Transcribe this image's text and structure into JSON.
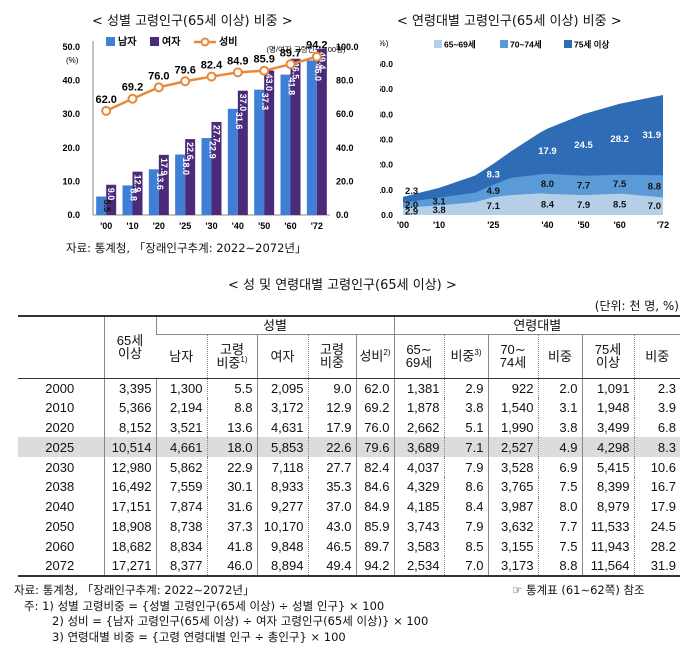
{
  "chart1_title": "< 성별 고령인구(65세 이상) 비중 >",
  "chart2_title": "< 연령대별 고령인구(65세 이상) 비중 >",
  "chart1_source": "자료: 통계청, 「장래인구추계: 2022∼2072년」",
  "table_title": "< 성 및 연령대별 고령인구(65세 이상) >",
  "unit": "(단위: 천 명, %)",
  "colors": {
    "male": "#3f7fd6",
    "female": "#4b2a7a",
    "ratio": "#e8893a",
    "c1": "#b6cfe9",
    "c2": "#5a9ad6",
    "c3": "#2e6db5"
  },
  "chart_data": [
    {
      "type": "bar",
      "title": "< 성별 고령인구(65세 이상) 비중 >",
      "categories": [
        "'00",
        "'10",
        "'20",
        "'25",
        "'30",
        "'40",
        "'50",
        "'60",
        "'72"
      ],
      "left_unit": "(%)",
      "right_unit": "(명/여자 고령인구 100명)",
      "ylim": [
        0,
        50
      ],
      "yticks": [
        "0.0",
        "10.0",
        "20.0",
        "30.0",
        "40.0",
        "50.0"
      ],
      "y2lim": [
        0,
        100
      ],
      "y2ticks": [
        "0.0",
        "20.0",
        "40.0",
        "60.0",
        "80.0",
        "100.0"
      ],
      "legend": [
        "남자",
        "여자",
        "성비"
      ],
      "series": [
        {
          "name": "남자",
          "values": [
            5.5,
            8.8,
            13.6,
            18.0,
            22.9,
            31.6,
            37.3,
            41.8,
            46.0
          ]
        },
        {
          "name": "여자",
          "values": [
            9.0,
            12.9,
            17.9,
            22.6,
            27.7,
            37.0,
            43.0,
            46.5,
            49.4
          ]
        },
        {
          "name": "성비",
          "axis": "right",
          "values": [
            62.0,
            69.2,
            76.0,
            79.6,
            82.4,
            84.9,
            85.9,
            89.7,
            94.2
          ]
        }
      ]
    },
    {
      "type": "area",
      "title": "< 연령대별 고령인구(65세 이상) 비중 >",
      "y_unit": "(%)",
      "ylim": [
        0,
        60
      ],
      "yticks": [
        "0.0",
        "10.0",
        "20.0",
        "30.0",
        "40.0",
        "50.0",
        "60.0"
      ],
      "xlim": [
        2000,
        2072
      ],
      "xticks": [
        {
          "x": 2000,
          "label": "'00"
        },
        {
          "x": 2010,
          "label": "'10"
        },
        {
          "x": 2025,
          "label": "'25"
        },
        {
          "x": 2040,
          "label": "'40"
        },
        {
          "x": 2050,
          "label": "'50"
        },
        {
          "x": 2060,
          "label": "'60"
        },
        {
          "x": 2072,
          "label": "'72"
        }
      ],
      "x": [
        2000,
        2010,
        2020,
        2025,
        2030,
        2038,
        2040,
        2050,
        2060,
        2072
      ],
      "legend": [
        "65~69세",
        "70~74세",
        "75세 이상"
      ],
      "series": [
        {
          "name": "65~69세",
          "values": [
            2.9,
            3.8,
            5.1,
            7.1,
            7.9,
            8.6,
            8.4,
            7.9,
            8.5,
            7.0
          ]
        },
        {
          "name": "70~74세",
          "values": [
            2.0,
            3.1,
            3.8,
            4.9,
            6.9,
            7.5,
            8.0,
            7.7,
            7.5,
            8.8
          ]
        },
        {
          "name": "75세 이상",
          "values": [
            2.3,
            3.9,
            6.8,
            8.3,
            10.6,
            16.7,
            17.9,
            24.5,
            28.2,
            31.9
          ]
        }
      ],
      "labels": [
        {
          "x": 2000,
          "series": 0,
          "text": "2.9"
        },
        {
          "x": 2000,
          "series": 1,
          "text": "2.0"
        },
        {
          "x": 2000,
          "series": 2,
          "text": "2.3"
        },
        {
          "x": 2010,
          "series": 0,
          "text": "3.8"
        },
        {
          "x": 2010,
          "series": 1,
          "text": "3.1"
        },
        {
          "x": 2010,
          "series": 2,
          "text": "3.9"
        },
        {
          "x": 2025,
          "series": 0,
          "text": "7.1"
        },
        {
          "x": 2025,
          "series": 1,
          "text": "4.9"
        },
        {
          "x": 2025,
          "series": 2,
          "text": "8.3"
        },
        {
          "x": 2040,
          "series": 0,
          "text": "8.4"
        },
        {
          "x": 2040,
          "series": 1,
          "text": "8.0"
        },
        {
          "x": 2040,
          "series": 2,
          "text": "17.9"
        },
        {
          "x": 2050,
          "series": 0,
          "text": "7.9"
        },
        {
          "x": 2050,
          "series": 1,
          "text": "7.7"
        },
        {
          "x": 2050,
          "series": 2,
          "text": "24.5"
        },
        {
          "x": 2060,
          "series": 0,
          "text": "8.5"
        },
        {
          "x": 2060,
          "series": 1,
          "text": "7.5"
        },
        {
          "x": 2060,
          "series": 2,
          "text": "28.2"
        },
        {
          "x": 2072,
          "series": 0,
          "text": "7.0"
        },
        {
          "x": 2072,
          "series": 1,
          "text": "8.8"
        },
        {
          "x": 2072,
          "series": 2,
          "text": "31.9"
        }
      ]
    }
  ],
  "table": {
    "header": {
      "total": [
        "65세",
        "이상"
      ],
      "group_sex": "성별",
      "group_age": "연령대별",
      "male": "남자",
      "male_share": [
        "고령",
        "비중"
      ],
      "male_share_sup": "1)",
      "female": "여자",
      "female_share": [
        "고령",
        "비중"
      ],
      "ratio": "성비",
      "ratio_sup": "2)",
      "a65": [
        "65∼",
        "69세"
      ],
      "share": "비중",
      "share_sup": "3)",
      "a70": [
        "70∼",
        "74세"
      ],
      "share2": "비중",
      "a75": [
        "75세",
        "이상"
      ],
      "share3": "비중"
    },
    "highlight_index": 3,
    "rows": [
      [
        "2000",
        "3,395",
        "1,300",
        "5.5",
        "2,095",
        "9.0",
        "62.0",
        "1,381",
        "2.9",
        "922",
        "2.0",
        "1,091",
        "2.3"
      ],
      [
        "2010",
        "5,366",
        "2,194",
        "8.8",
        "3,172",
        "12.9",
        "69.2",
        "1,878",
        "3.8",
        "1,540",
        "3.1",
        "1,948",
        "3.9"
      ],
      [
        "2020",
        "8,152",
        "3,521",
        "13.6",
        "4,631",
        "17.9",
        "76.0",
        "2,662",
        "5.1",
        "1,990",
        "3.8",
        "3,499",
        "6.8"
      ],
      [
        "2025",
        "10,514",
        "4,661",
        "18.0",
        "5,853",
        "22.6",
        "79.6",
        "3,689",
        "7.1",
        "2,527",
        "4.9",
        "4,298",
        "8.3"
      ],
      [
        "2030",
        "12,980",
        "5,862",
        "22.9",
        "7,118",
        "27.7",
        "82.4",
        "4,037",
        "7.9",
        "3,528",
        "6.9",
        "5,415",
        "10.6"
      ],
      [
        "2038",
        "16,492",
        "7,559",
        "30.1",
        "8,933",
        "35.3",
        "84.6",
        "4,329",
        "8.6",
        "3,765",
        "7.5",
        "8,399",
        "16.7"
      ],
      [
        "2040",
        "17,151",
        "7,874",
        "31.6",
        "9,277",
        "37.0",
        "84.9",
        "4,185",
        "8.4",
        "3,987",
        "8.0",
        "8,979",
        "17.9"
      ],
      [
        "2050",
        "18,908",
        "8,738",
        "37.3",
        "10,170",
        "43.0",
        "85.9",
        "3,743",
        "7.9",
        "3,632",
        "7.7",
        "11,533",
        "24.5"
      ],
      [
        "2060",
        "18,682",
        "8,834",
        "41.8",
        "9,848",
        "46.5",
        "89.7",
        "3,583",
        "8.5",
        "3,155",
        "7.5",
        "11,943",
        "28.2"
      ],
      [
        "2072",
        "17,271",
        "8,377",
        "46.0",
        "8,894",
        "49.4",
        "94.2",
        "2,534",
        "7.0",
        "3,173",
        "8.8",
        "11,564",
        "31.9"
      ]
    ]
  },
  "notes": {
    "source": "자료: 통계청, 「장래인구추계: 2022∼2072년」",
    "ref": "☞ 통계표 (61∼62쪽) 참조",
    "n1": "주: 1) 성별 고령비중 = {성별 고령인구(65세 이상) ÷ 성별 인구} × 100",
    "n2": "2) 성비 = {남자 고령인구(65세 이상) ÷ 여자 고령인구(65세 이상)} × 100",
    "n3": "3) 연령대별 비중 = {고령 연령대별 인구 ÷ 총인구} × 100"
  }
}
